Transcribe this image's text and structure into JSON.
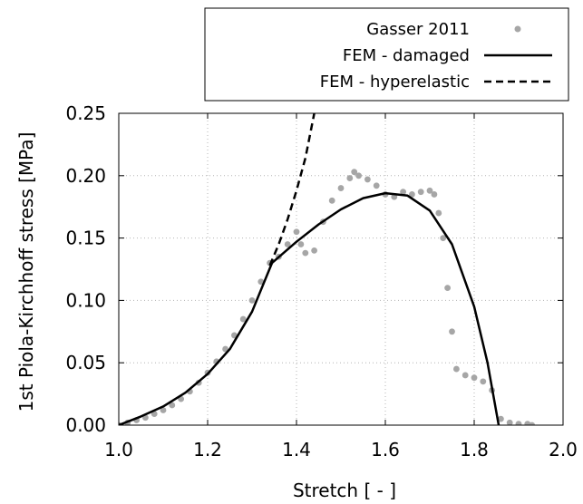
{
  "chart_data": {
    "type": "line",
    "xlabel": "Stretch [ - ]",
    "ylabel": "1st Piola-Kirchhoff stress [MPa]",
    "xlim": [
      1.0,
      2.0
    ],
    "ylim": [
      0.0,
      0.25
    ],
    "x_ticks": [
      "1.0",
      "1.2",
      "1.4",
      "1.6",
      "1.8",
      "2.0"
    ],
    "y_ticks": [
      "0.00",
      "0.05",
      "0.10",
      "0.15",
      "0.20",
      "0.25"
    ],
    "x_tick_values": [
      1.0,
      1.2,
      1.4,
      1.6,
      1.8,
      2.0
    ],
    "y_tick_values": [
      0.0,
      0.05,
      0.1,
      0.15,
      0.2,
      0.25
    ],
    "grid": true,
    "legend_position": "top-right",
    "series": [
      {
        "name": "Gasser 2011",
        "style": "points",
        "color": "#a6a6a6",
        "x": [
          1.0,
          1.02,
          1.04,
          1.06,
          1.08,
          1.1,
          1.12,
          1.14,
          1.16,
          1.18,
          1.2,
          1.22,
          1.24,
          1.26,
          1.28,
          1.3,
          1.32,
          1.34,
          1.36,
          1.38,
          1.4,
          1.41,
          1.42,
          1.44,
          1.46,
          1.48,
          1.5,
          1.52,
          1.53,
          1.54,
          1.56,
          1.58,
          1.6,
          1.62,
          1.64,
          1.66,
          1.68,
          1.7,
          1.71,
          1.72,
          1.73,
          1.74,
          1.75,
          1.76,
          1.78,
          1.8,
          1.82,
          1.84,
          1.86,
          1.88,
          1.9,
          1.92,
          1.93
        ],
        "y": [
          0.0,
          0.002,
          0.004,
          0.006,
          0.009,
          0.012,
          0.016,
          0.021,
          0.027,
          0.034,
          0.042,
          0.051,
          0.061,
          0.072,
          0.085,
          0.1,
          0.115,
          0.13,
          0.135,
          0.145,
          0.155,
          0.145,
          0.138,
          0.14,
          0.163,
          0.18,
          0.19,
          0.198,
          0.203,
          0.2,
          0.197,
          0.192,
          0.185,
          0.183,
          0.187,
          0.185,
          0.187,
          0.188,
          0.185,
          0.17,
          0.15,
          0.11,
          0.075,
          0.045,
          0.04,
          0.038,
          0.035,
          0.028,
          0.005,
          0.002,
          0.001,
          0.001,
          0.0
        ]
      },
      {
        "name": "FEM - damaged",
        "style": "solid",
        "color": "#000000",
        "x": [
          1.0,
          1.05,
          1.1,
          1.15,
          1.2,
          1.25,
          1.3,
          1.345,
          1.4,
          1.45,
          1.5,
          1.55,
          1.6,
          1.65,
          1.7,
          1.75,
          1.8,
          1.83,
          1.855
        ],
        "y": [
          0.0,
          0.007,
          0.015,
          0.026,
          0.041,
          0.061,
          0.091,
          0.13,
          0.147,
          0.161,
          0.173,
          0.182,
          0.186,
          0.184,
          0.172,
          0.145,
          0.095,
          0.05,
          0.0
        ]
      },
      {
        "name": "FEM - hyperelastic",
        "style": "dashed",
        "color": "#000000",
        "x": [
          1.34,
          1.36,
          1.38,
          1.4,
          1.42,
          1.44
        ],
        "y": [
          0.128,
          0.145,
          0.165,
          0.188,
          0.214,
          0.25
        ]
      }
    ]
  }
}
